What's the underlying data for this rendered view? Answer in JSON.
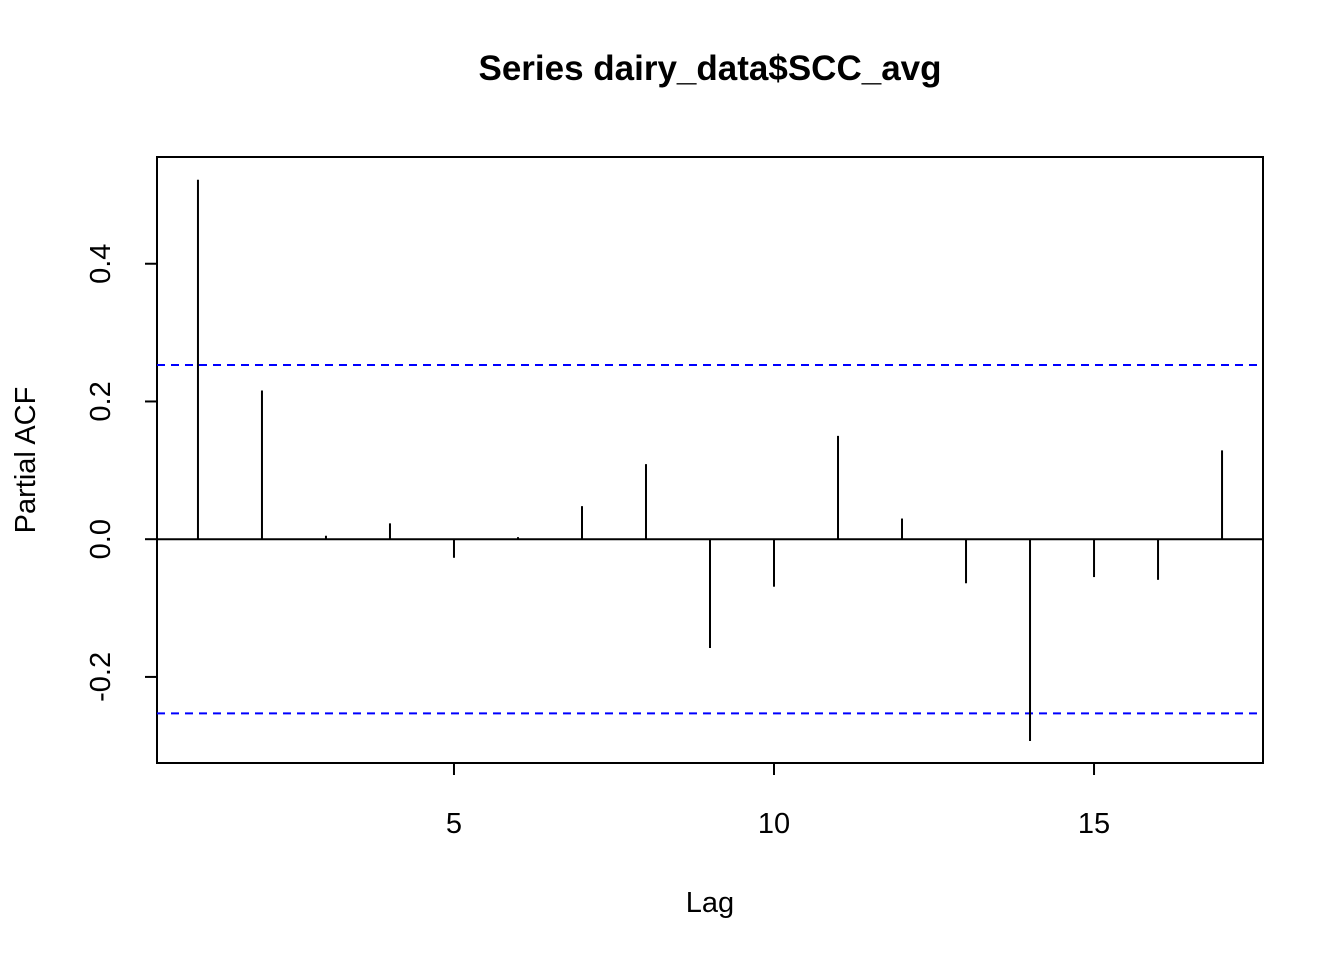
{
  "chart_data": {
    "type": "bar",
    "title": "Series  dairy_data$SCC_avg",
    "xlabel": "Lag",
    "ylabel": "Partial ACF",
    "xlim": [
      0.36,
      17.64
    ],
    "ylim": [
      -0.325,
      0.555
    ],
    "x_ticks": [
      5,
      10,
      15
    ],
    "x_tick_labels": [
      "5",
      "10",
      "15"
    ],
    "y_ticks": [
      -0.2,
      0.0,
      0.2,
      0.4
    ],
    "y_tick_labels": [
      "-0.2",
      "0.0",
      "0.2",
      "0.4"
    ],
    "x": [
      1,
      2,
      3,
      4,
      5,
      6,
      7,
      8,
      9,
      10,
      11,
      12,
      13,
      14,
      15,
      16,
      17
    ],
    "values": [
      0.522,
      0.216,
      0.005,
      0.023,
      -0.027,
      0.003,
      0.048,
      0.109,
      -0.158,
      -0.069,
      0.15,
      0.03,
      -0.064,
      -0.293,
      -0.055,
      -0.059,
      0.129
    ],
    "confidence_limits": [
      0.253,
      -0.253
    ],
    "colors": {
      "bars": "#000000",
      "confidence": "#0000ff",
      "zero_line": "#000000"
    },
    "grid": false,
    "legend": "none"
  }
}
